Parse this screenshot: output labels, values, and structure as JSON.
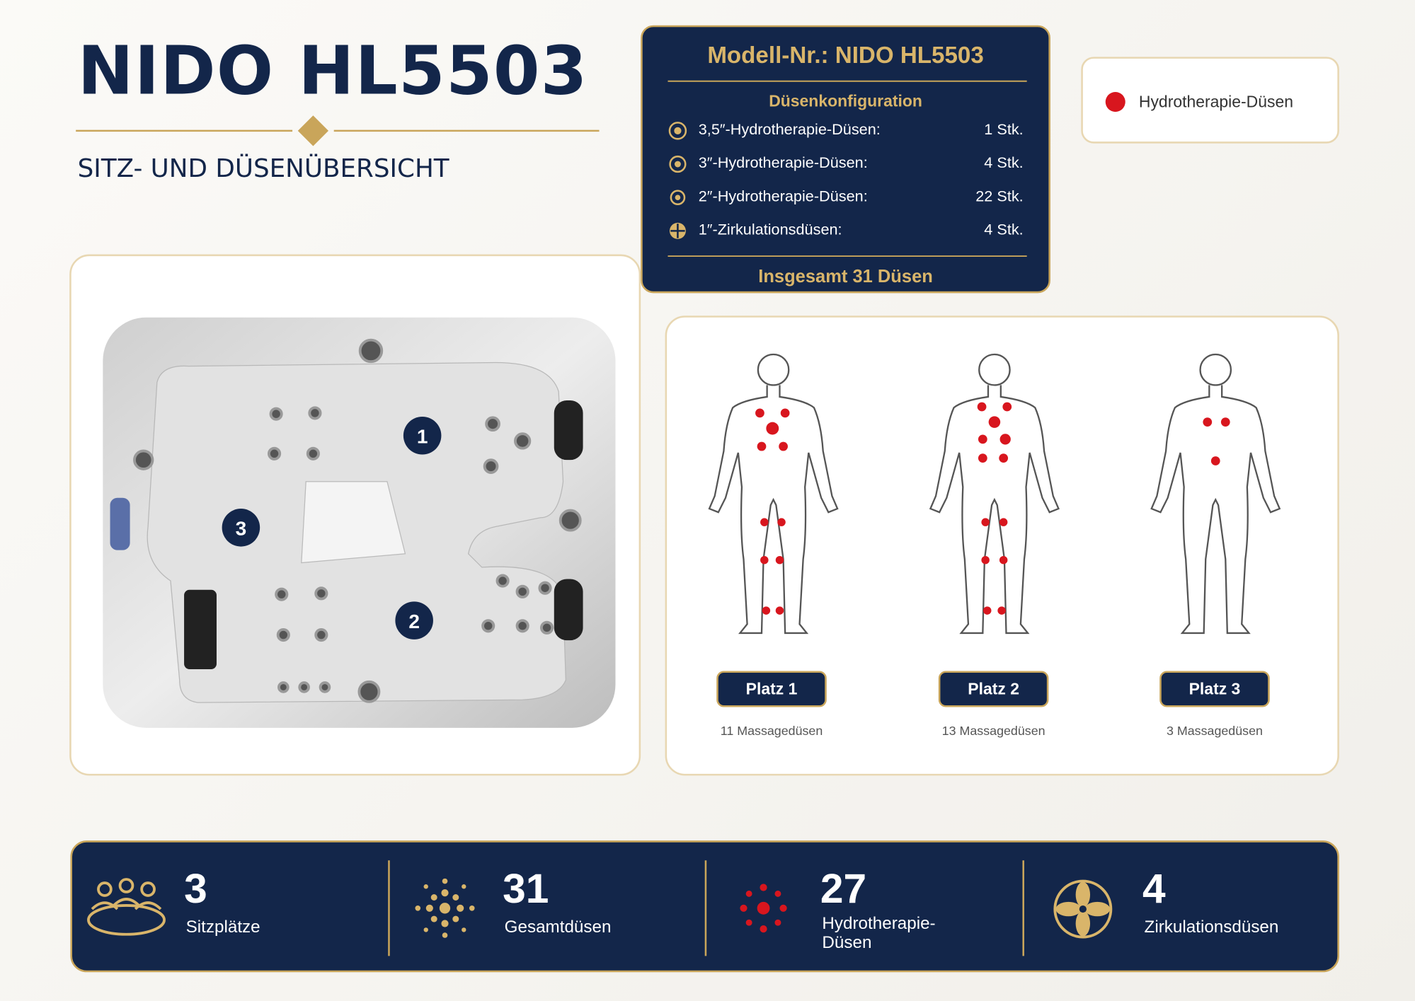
{
  "header": {
    "title": "NIDO HL5503",
    "subtitle": "SITZ- UND DÜSENÜBERSICHT"
  },
  "spec_panel": {
    "title": "Modell-Nr.: NIDO HL5503",
    "section": "Düsenkonfiguration",
    "rows": [
      {
        "label": "3,5″-Hydrotherapie-Düsen:",
        "count": "1 Stk."
      },
      {
        "label": "3″-Hydrotherapie-Düsen:",
        "count": "4 Stk."
      },
      {
        "label": "2″-Hydrotherapie-Düsen:",
        "count": "22 Stk."
      },
      {
        "label": "1″-Zirkulationsdüsen:",
        "count": "4 Stk."
      }
    ],
    "total": "Insgesamt 31 Düsen"
  },
  "legend": {
    "label": "Hydrotherapie-Düsen"
  },
  "tub": {
    "seats": [
      "1",
      "2",
      "3"
    ]
  },
  "seats": [
    {
      "label": "Platz 1",
      "note": "11 Massagedüsen"
    },
    {
      "label": "Platz 2",
      "note": "13 Massagedüsen"
    },
    {
      "label": "Platz 3",
      "note": "3 Massagedüsen"
    }
  ],
  "stats": [
    {
      "value": "3",
      "label": "Sitzplätze"
    },
    {
      "value": "31",
      "label": "Gesamtdüsen"
    },
    {
      "value": "27",
      "label": "Hydrotherapie-Düsen"
    },
    {
      "value": "4",
      "label": "Zirkulationsdüsen"
    }
  ]
}
